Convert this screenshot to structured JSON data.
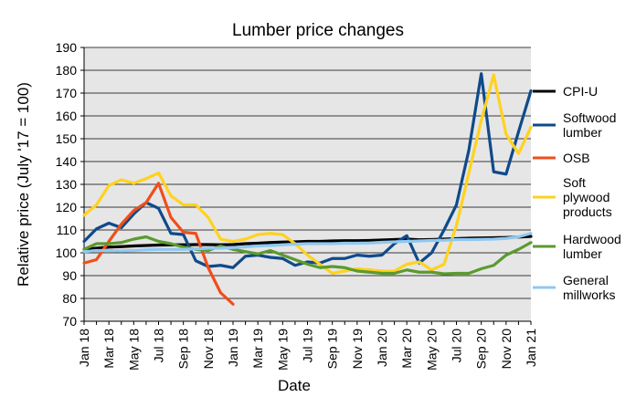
{
  "chart_data": {
    "type": "line",
    "title": "Lumber price changes",
    "xlabel": "Date",
    "ylabel": "Relative price (July '17 = 100)",
    "ylim": [
      70,
      190
    ],
    "yticks": [
      70,
      80,
      90,
      100,
      110,
      120,
      130,
      140,
      150,
      160,
      170,
      180,
      190
    ],
    "grid": true,
    "legend_position": "right",
    "plot_background": "#e6e6e6",
    "x": [
      "Jan 18",
      "Feb 18",
      "Mar 18",
      "Apr 18",
      "May 18",
      "Jun 18",
      "Jul 18",
      "Aug 18",
      "Sep 18",
      "Oct 18",
      "Nov 18",
      "Dec 18",
      "Jan 19",
      "Feb 19",
      "Mar 19",
      "Apr 19",
      "May 19",
      "Jun 19",
      "Jul 19",
      "Aug 19",
      "Sep 19",
      "Oct 19",
      "Nov 19",
      "Dec 19",
      "Jan 20",
      "Feb 20",
      "Mar 20",
      "Apr 20",
      "May 20",
      "Jun 20",
      "Jul 20",
      "Aug 20",
      "Sep 20",
      "Oct 20",
      "Nov 20",
      "Dec 20",
      "Jan 21"
    ],
    "xtick_labels": [
      "Jan 18",
      "Mar 18",
      "May 18",
      "Jul 18",
      "Sep 18",
      "Nov 18",
      "Jan 19",
      "Mar 19",
      "May 19",
      "Jul 19",
      "Sep 19",
      "Nov 19",
      "Jan 20",
      "Mar 20",
      "May 20",
      "Jul 20",
      "Sep 20",
      "Nov 20",
      "Jan 21"
    ],
    "series": [
      {
        "name": "CPI-U",
        "color": "#000000",
        "values": [
          101.5,
          102,
          102.5,
          102.7,
          103,
          103.2,
          103.4,
          103.5,
          103.5,
          103.6,
          103.6,
          103.5,
          103.6,
          104,
          104.2,
          104.5,
          104.7,
          104.8,
          105,
          105,
          105.2,
          105.3,
          105.3,
          105.4,
          105.6,
          105.8,
          106,
          105.7,
          105.8,
          106,
          106.2,
          106.4,
          106.5,
          106.6,
          106.7,
          106.9,
          107.2
        ]
      },
      {
        "name": "Softwood lumber",
        "color": "#0f4a8a",
        "values": [
          105,
          110.5,
          113,
          111,
          117,
          122,
          119.5,
          108.5,
          108,
          96.5,
          94,
          94.5,
          93.5,
          98.5,
          99,
          98,
          97.5,
          94.5,
          96,
          95.5,
          97.5,
          97.5,
          99,
          98.5,
          99,
          104,
          107.5,
          95.5,
          100,
          110,
          121,
          145,
          178.5,
          135.5,
          134.5,
          153,
          171
        ]
      },
      {
        "name": "OSB",
        "color": "#f04e1a",
        "values": [
          95.5,
          97,
          105,
          112.5,
          118.5,
          122,
          130.5,
          115.5,
          109,
          108.5,
          93.5,
          82.5,
          77.5,
          null,
          null,
          null,
          null,
          null,
          null,
          null,
          null,
          null,
          null,
          null,
          null,
          null,
          null,
          null,
          null,
          null,
          null,
          null,
          null,
          null,
          null,
          null,
          null
        ]
      },
      {
        "name": "Soft plywood products",
        "color": "#ffd21f",
        "values": [
          116.5,
          121,
          129.5,
          132,
          130.5,
          132.5,
          135,
          125,
          121,
          121,
          115.5,
          106,
          105,
          106,
          108,
          108.5,
          108,
          104,
          99,
          95,
          91,
          92,
          93,
          92.5,
          92,
          92,
          95,
          96,
          92.5,
          95,
          112,
          135,
          158,
          178,
          152,
          143.5,
          155
        ]
      },
      {
        "name": "Hardwood lumber",
        "color": "#5a9a2e",
        "values": [
          101.5,
          104,
          104,
          104.5,
          106,
          107,
          105,
          104,
          102.5,
          101.5,
          101,
          103,
          101.5,
          100.5,
          99.5,
          101,
          99,
          97,
          95,
          93.5,
          94,
          93.5,
          92,
          91.5,
          91,
          91,
          92.5,
          91.5,
          91.5,
          90.8,
          91,
          91,
          93,
          94.5,
          99,
          101.5,
          104.5
        ]
      },
      {
        "name": "General millworks",
        "color": "#8fc8f0",
        "values": [
          100.5,
          101,
          101,
          100.8,
          101,
          101.3,
          101.5,
          101.5,
          101.5,
          101.7,
          102,
          102,
          102.3,
          102.6,
          103,
          103.2,
          103.5,
          103.8,
          104,
          104,
          104,
          104.2,
          104.2,
          104.3,
          104.6,
          104.8,
          105,
          105.2,
          105.4,
          105.5,
          105.8,
          105.8,
          105.9,
          106,
          106.3,
          107,
          108.5
        ]
      }
    ]
  }
}
